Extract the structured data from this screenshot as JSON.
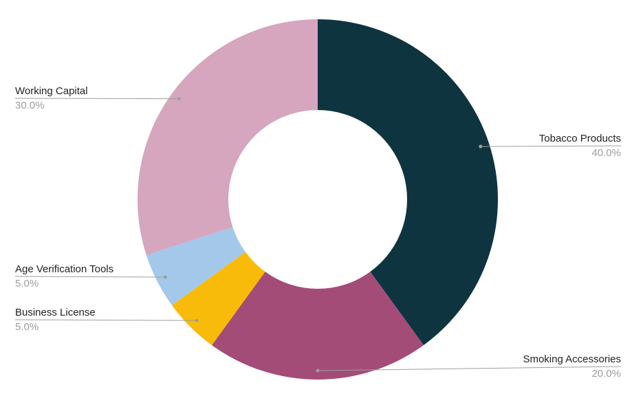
{
  "chart_data": {
    "type": "donut",
    "categories": [
      "Tobacco Products",
      "Smoking Accessories",
      "Business License",
      "Age Verification Tools",
      "Working Capital"
    ],
    "values": [
      40,
      20,
      5,
      5,
      30
    ],
    "value_labels": [
      "40.0%",
      "20.0%",
      "5.0%",
      "5.0%",
      "30.0%"
    ],
    "colors": [
      "#0e3440",
      "#a44c78",
      "#f9bb0a",
      "#a4c8ea",
      "#d5a6bd"
    ]
  }
}
